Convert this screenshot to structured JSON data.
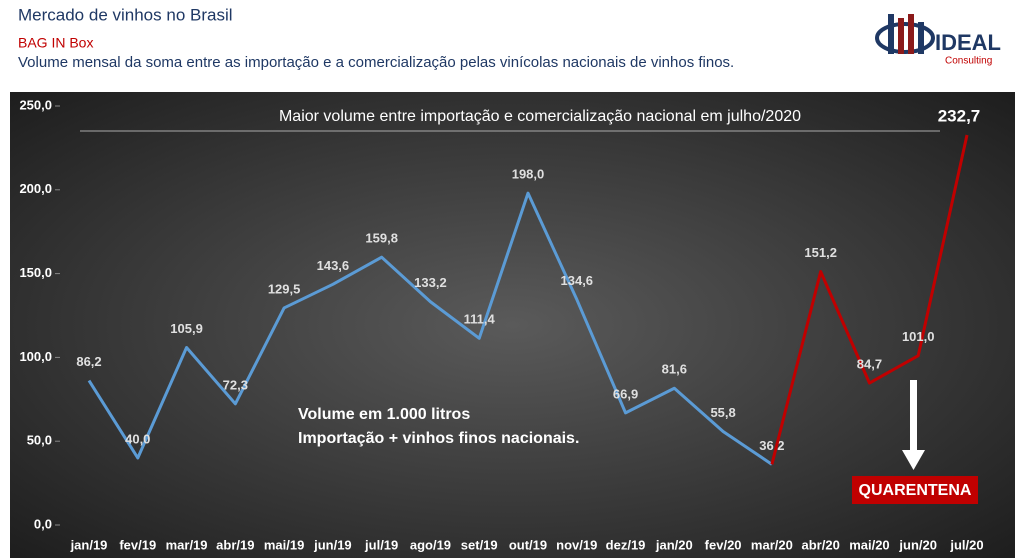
{
  "header": {
    "title": "Mercado de vinhos no Brasil",
    "subtitle": "BAG IN Box",
    "description": "Volume mensal da soma entre as importação e a comercialização pelas vinícolas nacionais de vinhos finos."
  },
  "logo": {
    "name": "IDEAL",
    "tagline": "Consulting"
  },
  "chart_data": {
    "type": "line",
    "categories": [
      "jan/19",
      "fev/19",
      "mar/19",
      "abr/19",
      "mai/19",
      "jun/19",
      "jul/19",
      "ago/19",
      "set/19",
      "out/19",
      "nov/19",
      "dez/19",
      "jan/20",
      "fev/20",
      "mar/20",
      "abr/20",
      "mai/20",
      "jun/20",
      "jul/20"
    ],
    "series": [
      {
        "color": "#5b9bd5",
        "values": [
          86.2,
          40.0,
          105.9,
          72.3,
          129.5,
          143.6,
          159.8,
          133.2,
          111.4,
          198.0,
          134.6,
          66.9,
          81.6,
          55.8,
          36.2,
          null,
          null,
          null,
          null
        ],
        "value_labels": [
          "86,2",
          "40,0",
          "105,9",
          "72,3",
          "129,5",
          "143,6",
          "159,8",
          "133,2",
          "111,4",
          "198,0",
          "134,6",
          "66,9",
          "81,6",
          "55,8",
          "36,2",
          null,
          null,
          null,
          null
        ]
      },
      {
        "color": "#c00000",
        "values": [
          null,
          null,
          null,
          null,
          null,
          null,
          null,
          null,
          null,
          null,
          null,
          null,
          null,
          null,
          36.2,
          151.2,
          84.7,
          101.0,
          232.7
        ],
        "value_labels": [
          null,
          null,
          null,
          null,
          null,
          null,
          null,
          null,
          null,
          null,
          null,
          null,
          null,
          null,
          null,
          "151,2",
          "84,7",
          "101,0",
          "232,7"
        ]
      }
    ],
    "ylim": [
      0,
      250
    ],
    "yticks": [
      {
        "value": 0,
        "label": "0,0"
      },
      {
        "value": 50,
        "label": "50,0"
      },
      {
        "value": 100,
        "label": "100,0"
      },
      {
        "value": 150,
        "label": "150,0"
      },
      {
        "value": 200,
        "label": "200,0"
      },
      {
        "value": 250,
        "label": "250,0"
      }
    ],
    "grid": false,
    "annotations": {
      "peak_note": "Maior volume entre importação e comercialização nacional em julho/2020",
      "unit_note": "Volume em 1.000 litros",
      "source_note": "Importação + vinhos finos nacionais.",
      "event": "QUARENTENA"
    }
  }
}
